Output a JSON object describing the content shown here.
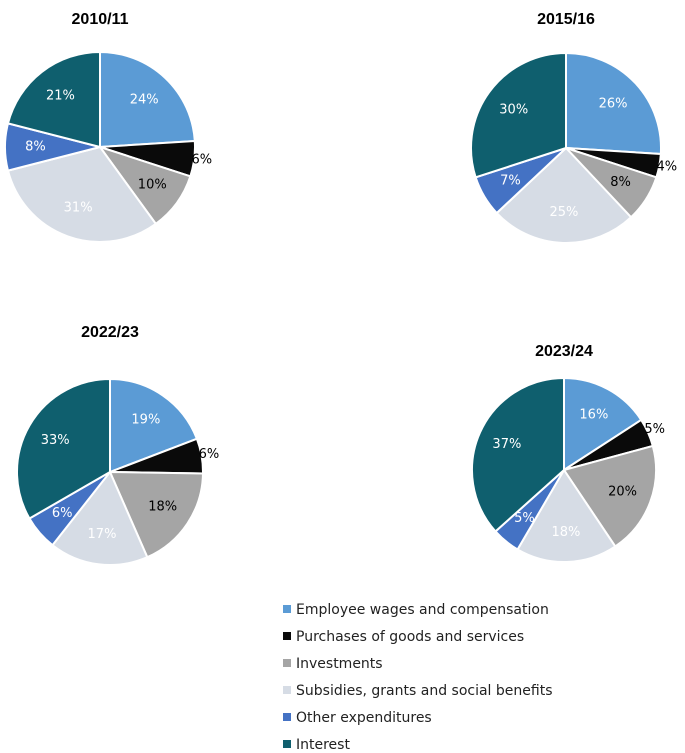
{
  "chart_data": [
    {
      "type": "pie",
      "title": "2010/11",
      "values": [
        24,
        6,
        10,
        31,
        8,
        21
      ],
      "value_labels": [
        "24%",
        "6%",
        "10%",
        "31%",
        "8%",
        "21%"
      ]
    },
    {
      "type": "pie",
      "title": "2015/16",
      "values": [
        26,
        4,
        8,
        25,
        7,
        30
      ],
      "value_labels": [
        "26%",
        "4%",
        "8%",
        "25%",
        "7%",
        "30%"
      ]
    },
    {
      "type": "pie",
      "title": "2022/23",
      "values": [
        19,
        6,
        18,
        17,
        6,
        33
      ],
      "value_labels": [
        "19%",
        "6%",
        "18%",
        "17%",
        "6%",
        "33%"
      ]
    },
    {
      "type": "pie",
      "title": "2023/24",
      "values": [
        16,
        5,
        20,
        18,
        5,
        37
      ],
      "value_labels": [
        "16%",
        "5%",
        "20%",
        "18%",
        "5%",
        "37%"
      ]
    }
  ],
  "legend": {
    "labels": [
      "Employee wages and compensation",
      "Purchases of goods and services",
      "Investments",
      "Subsidies, grants and social benefits",
      "Other expenditures",
      "Interest"
    ],
    "colors": [
      "#5b9bd5",
      "#0a0a0a",
      "#a5a5a5",
      "#d6dce5",
      "#4472c4",
      "#0f5f6e"
    ]
  }
}
